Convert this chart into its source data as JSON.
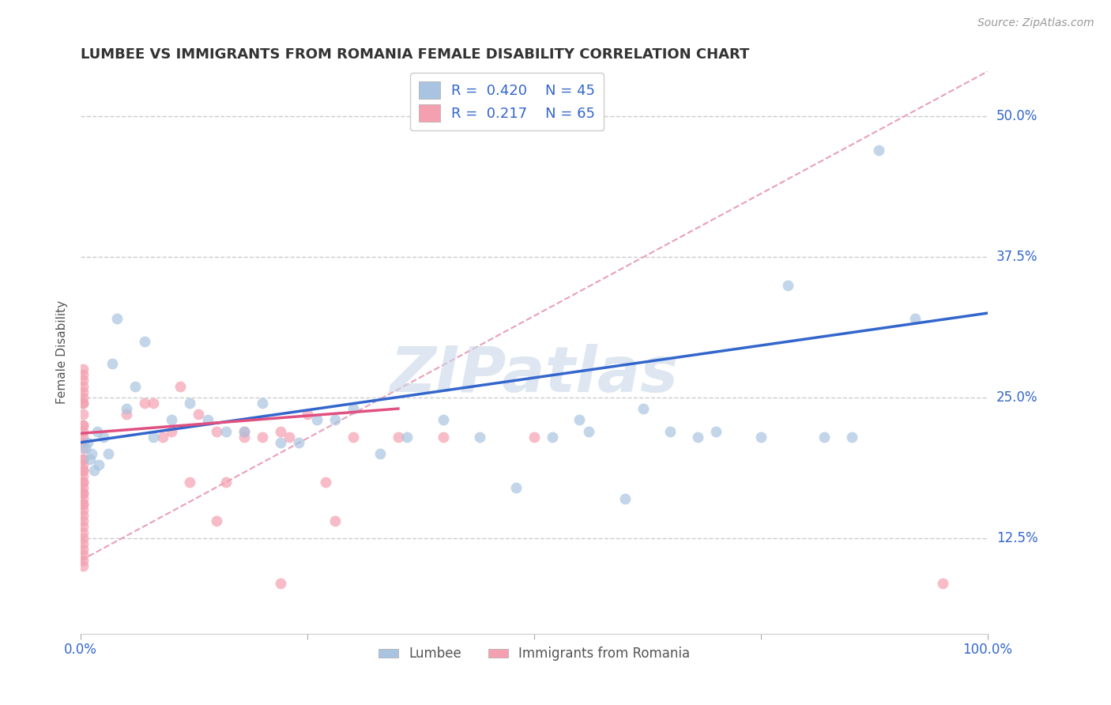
{
  "title": "LUMBEE VS IMMIGRANTS FROM ROMANIA FEMALE DISABILITY CORRELATION CHART",
  "source": "Source: ZipAtlas.com",
  "ylabel": "Female Disability",
  "xlim": [
    0,
    1.0
  ],
  "ylim": [
    0.04,
    0.54
  ],
  "ytick_labels": [
    "12.5%",
    "25.0%",
    "37.5%",
    "50.0%"
  ],
  "ytick_vals": [
    0.125,
    0.25,
    0.375,
    0.5
  ],
  "lumbee_color": "#a8c4e0",
  "romania_color": "#f4a0b0",
  "lumbee_line_color": "#3366cc",
  "romania_line_color": "#e05080",
  "dashed_line_color": "#e8a0b8",
  "legend_R_lumbee": "R =  0.420",
  "legend_N_lumbee": "N = 45",
  "legend_R_romania": "R =  0.217",
  "legend_N_romania": "N = 65",
  "watermark": "ZIPatlas",
  "lumbee_scatter_x": [
    0.005,
    0.008,
    0.01,
    0.012,
    0.015,
    0.018,
    0.02,
    0.025,
    0.03,
    0.035,
    0.04,
    0.05,
    0.06,
    0.07,
    0.08,
    0.1,
    0.12,
    0.14,
    0.16,
    0.18,
    0.2,
    0.22,
    0.24,
    0.26,
    0.28,
    0.3,
    0.33,
    0.36,
    0.4,
    0.44,
    0.48,
    0.52,
    0.56,
    0.6,
    0.65,
    0.7,
    0.75,
    0.78,
    0.82,
    0.85,
    0.55,
    0.62,
    0.68,
    0.88,
    0.92
  ],
  "lumbee_scatter_y": [
    0.205,
    0.21,
    0.195,
    0.2,
    0.185,
    0.22,
    0.19,
    0.215,
    0.2,
    0.28,
    0.32,
    0.24,
    0.26,
    0.3,
    0.215,
    0.23,
    0.245,
    0.23,
    0.22,
    0.22,
    0.245,
    0.21,
    0.21,
    0.23,
    0.23,
    0.24,
    0.2,
    0.215,
    0.23,
    0.215,
    0.17,
    0.215,
    0.22,
    0.16,
    0.22,
    0.22,
    0.215,
    0.35,
    0.215,
    0.215,
    0.23,
    0.24,
    0.215,
    0.47,
    0.32
  ],
  "romania_scatter_x": [
    0.002,
    0.002,
    0.002,
    0.002,
    0.002,
    0.002,
    0.002,
    0.002,
    0.002,
    0.002,
    0.002,
    0.002,
    0.002,
    0.002,
    0.002,
    0.002,
    0.002,
    0.002,
    0.002,
    0.002,
    0.002,
    0.002,
    0.002,
    0.002,
    0.002,
    0.002,
    0.002,
    0.002,
    0.002,
    0.002,
    0.002,
    0.002,
    0.002,
    0.002,
    0.002,
    0.002,
    0.002,
    0.002,
    0.002,
    0.002,
    0.05,
    0.08,
    0.1,
    0.13,
    0.16,
    0.2,
    0.23,
    0.27,
    0.3,
    0.18,
    0.22,
    0.25,
    0.12,
    0.15,
    0.28,
    0.07,
    0.09,
    0.11,
    0.35,
    0.5,
    0.4,
    0.15,
    0.18,
    0.22,
    0.95
  ],
  "romania_scatter_y": [
    0.195,
    0.19,
    0.185,
    0.18,
    0.175,
    0.17,
    0.165,
    0.16,
    0.155,
    0.15,
    0.145,
    0.14,
    0.135,
    0.13,
    0.125,
    0.12,
    0.115,
    0.11,
    0.105,
    0.1,
    0.21,
    0.215,
    0.22,
    0.225,
    0.205,
    0.195,
    0.185,
    0.175,
    0.165,
    0.155,
    0.245,
    0.25,
    0.26,
    0.27,
    0.275,
    0.265,
    0.255,
    0.245,
    0.235,
    0.225,
    0.235,
    0.245,
    0.22,
    0.235,
    0.175,
    0.215,
    0.215,
    0.175,
    0.215,
    0.22,
    0.22,
    0.235,
    0.175,
    0.14,
    0.14,
    0.245,
    0.215,
    0.26,
    0.215,
    0.215,
    0.215,
    0.22,
    0.215,
    0.085,
    0.085
  ],
  "bg_color": "#ffffff",
  "grid_color": "#cccccc",
  "title_color": "#333333",
  "axis_label_color": "#555555",
  "tick_color": "#3366cc",
  "watermark_color": "#c8d8e8",
  "title_fontsize": 13.0,
  "marker_size": 100
}
